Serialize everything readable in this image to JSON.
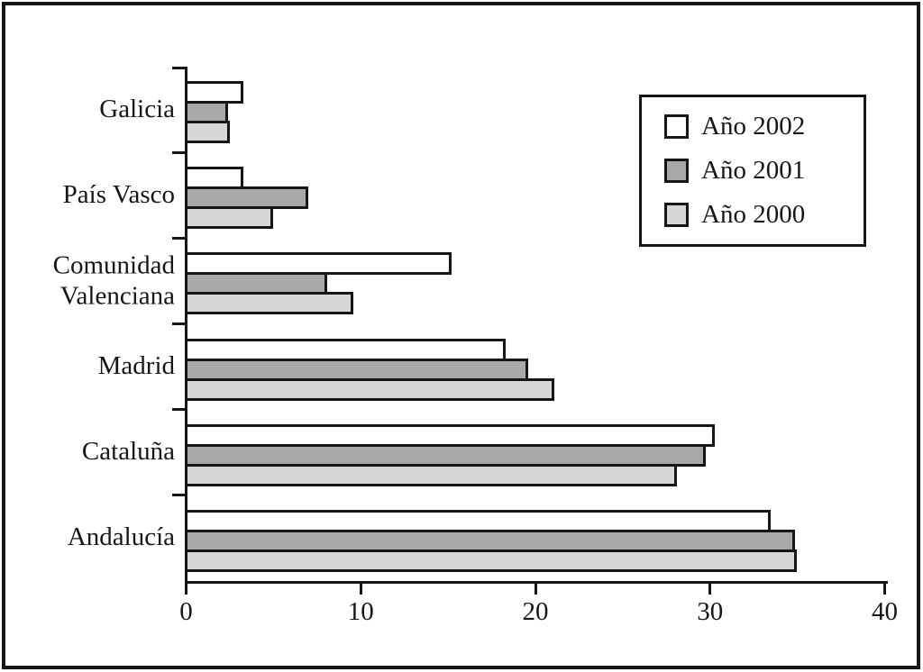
{
  "chart_data": {
    "type": "bar",
    "orientation": "horizontal",
    "title": "",
    "xlabel": "",
    "ylabel": "",
    "categories": [
      "Galicia",
      "País Vasco",
      "Comunidad Valenciana",
      "Madrid",
      "Cataluña",
      "Andalucía"
    ],
    "series": [
      {
        "name": "Año 2002",
        "color": "#ffffff",
        "values": [
          3.2,
          3.2,
          15.1,
          18.2,
          30.2,
          33.4
        ]
      },
      {
        "name": "Año 2001",
        "color": "#a8a8a8",
        "values": [
          2.3,
          6.9,
          8.0,
          19.5,
          29.7,
          34.8
        ]
      },
      {
        "name": "Año 2000",
        "color": "#d6d6d6",
        "values": [
          2.4,
          4.9,
          9.5,
          21.0,
          28.0,
          34.9
        ]
      }
    ],
    "x_ticks": [
      "0",
      "10",
      "20",
      "30",
      "40"
    ],
    "xlim": [
      0,
      40
    ],
    "grid": false,
    "legend_position": "top-right",
    "ink_color": "#161616"
  }
}
